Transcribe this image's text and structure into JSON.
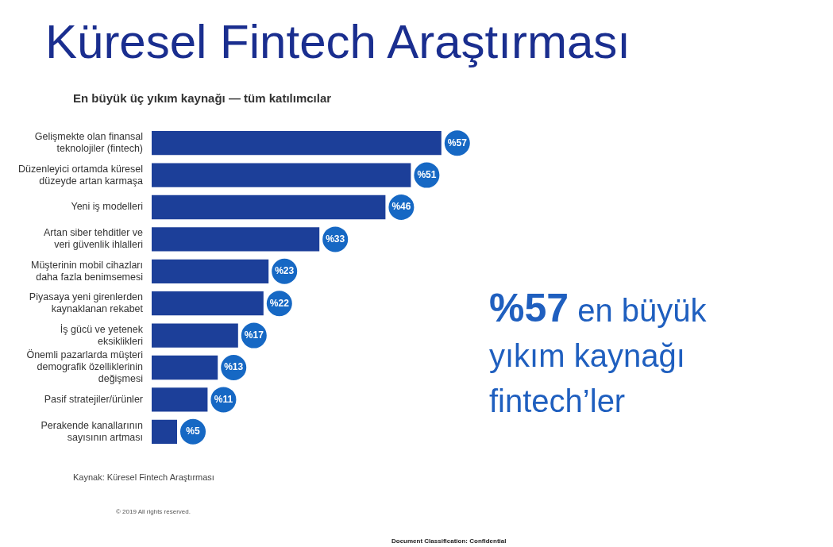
{
  "chart_data": {
    "type": "bar",
    "orientation": "horizontal",
    "title": "Küresel Fintech Araştırması",
    "subtitle": "En büyük üç yıkım kaynağı — tüm katılımcılar",
    "categories": [
      "Gelişmekte olan finansal teknolojiler (fintech)",
      "Düzenleyici ortamda küresel düzeyde artan karmaşa",
      "Yeni iş modelleri",
      "Artan siber tehditler ve veri güvenlik ihlalleri",
      "Müşterinin mobil cihazları daha fazla benimsemesi",
      "Piyasaya yeni girenlerden kaynaklanan rekabet",
      "İş gücü ve yetenek eksiklikleri",
      "Önemli pazarlarda müşteri demografik özelliklerinin değişmesi",
      "Pasif stratejiler/ürünler",
      "Perakende kanallarının sayısının artması"
    ],
    "values": [
      57,
      51,
      46,
      33,
      23,
      22,
      17,
      13,
      11,
      5
    ],
    "value_labels": [
      "%57",
      "%51",
      "%46",
      "%33",
      "%23",
      "%22",
      "%17",
      "%13",
      "%11",
      "%5"
    ],
    "color": "#1c3f99",
    "legend": false,
    "tick_labels": "y",
    "annotations": [
      "%57 en büyük yıkım kaynağı fintech’ler",
      "Kaynak: Küresel Fintech Araştırması",
      "© 2019 All rights reserved.",
      "Document Classification: Confidential"
    ]
  }
}
